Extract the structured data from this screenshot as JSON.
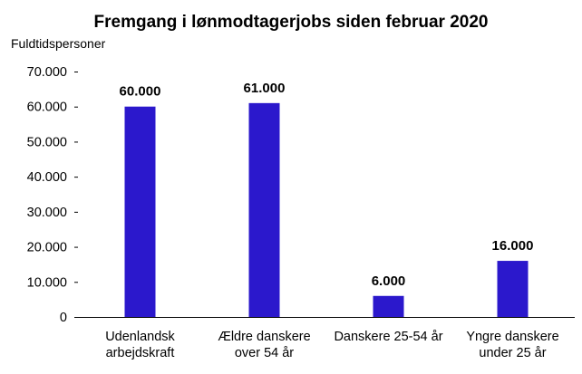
{
  "chart_data": {
    "type": "bar",
    "title": "Fremgang i lønmodtagerjobs siden februar 2020",
    "ylabel": "Fuldtidspersoner",
    "xlabel": "",
    "categories": [
      [
        "Udenlandsk",
        "arbejdskraft"
      ],
      [
        "Ældre danskere",
        "over 54 år"
      ],
      [
        "Danskere 25-54 år"
      ],
      [
        "Yngre danskere",
        "under 25 år"
      ]
    ],
    "values": [
      60000,
      61000,
      6000,
      16000
    ],
    "data_labels": [
      "60.000",
      "61.000",
      "6.000",
      "16.000"
    ],
    "ylim": [
      0,
      70000
    ],
    "yticks": [
      0,
      10000,
      20000,
      30000,
      40000,
      50000,
      60000,
      70000
    ],
    "ytick_labels": [
      "0",
      "10.000",
      "20.000",
      "30.000",
      "40.000",
      "50.000",
      "60.000",
      "70.000"
    ],
    "bar_color": "#2b18cc",
    "grid": false,
    "legend": "none"
  }
}
